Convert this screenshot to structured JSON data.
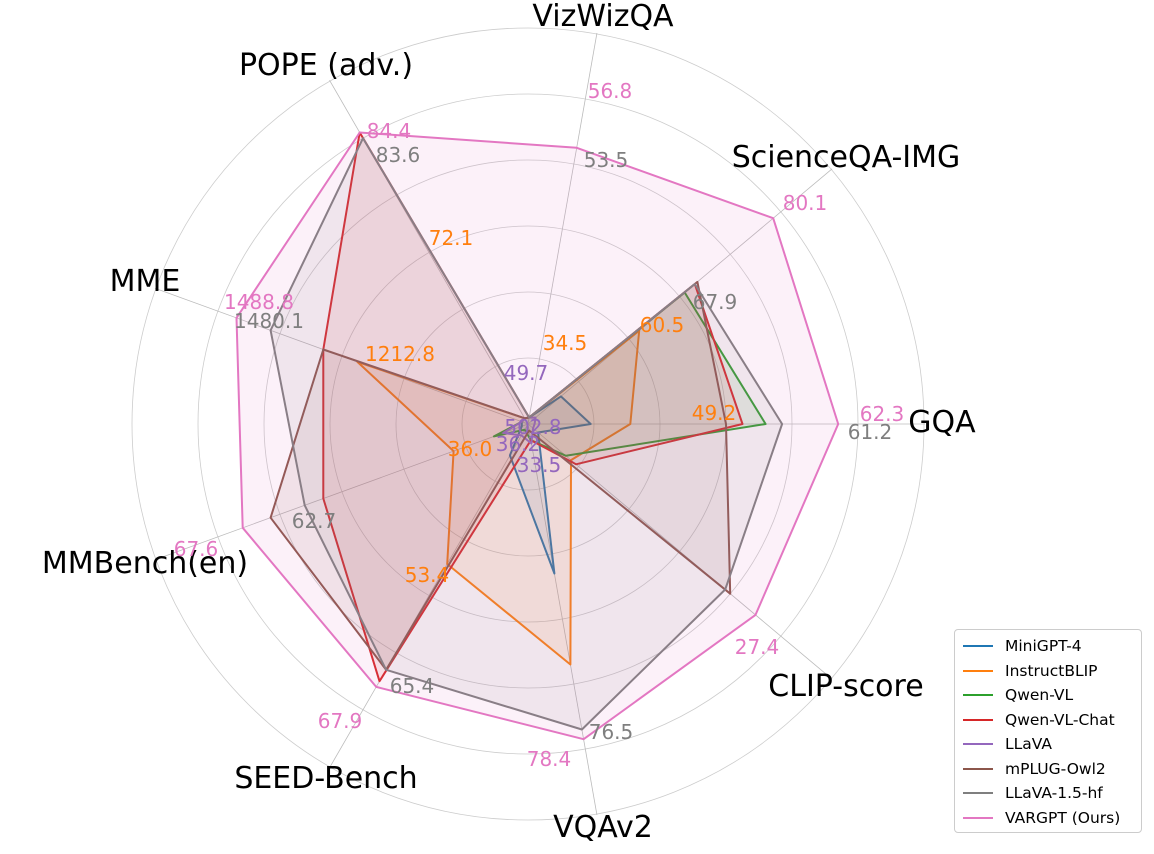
{
  "chart_data": {
    "type": "radar",
    "axes": [
      "GQA",
      "VizWizQA",
      "POPE (adv.)",
      "MME",
      "MMBench(en)",
      "SEED-Bench",
      "VQAv2",
      "CLIP-score",
      "ScienceQA-IMG"
    ],
    "axes_clockwise_from_east": [
      "GQA",
      "CLIP-score",
      "VQAv2",
      "SEED-Bench",
      "MMBench(en)",
      "MME",
      "POPE (adv.)",
      "VizWizQA",
      "ScienceQA-IMG"
    ],
    "normalized_note": "values are each model's score normalized per axis (0 = center, 1 = outer ring)",
    "series": [
      {
        "name": "MiniGPT-4",
        "color": "#1f77b4",
        "values": [
          0.19,
          0.04,
          0.46,
          0.11,
          0.02,
          0.02,
          0.02,
          0.02,
          0.13
        ]
      },
      {
        "name": "InstructBLIP",
        "color": "#ff7f0e",
        "values": [
          0.31,
          0.17,
          0.74,
          0.49,
          0.24,
          0.55,
          0.02,
          0.02,
          0.44
        ]
      },
      {
        "name": "Qwen-VL",
        "color": "#2ca02c",
        "values": [
          0.72,
          0.15,
          0.05,
          0.02,
          0.11,
          0.02,
          0.02,
          0.02,
          0.62
        ]
      },
      {
        "name": "Qwen-VL-Chat",
        "color": "#d62728",
        "values": [
          0.65,
          0.19,
          0.05,
          0.9,
          0.66,
          0.66,
          1.02,
          0.02,
          0.66
        ]
      },
      {
        "name": "LLaVA",
        "color": "#9467bd",
        "values": [
          0.02,
          0.02,
          0.06,
          0.04,
          0.08,
          0.02,
          0.02,
          0.02,
          0.03
        ]
      },
      {
        "name": "mPLUG-Owl2",
        "color": "#8c564b",
        "values": [
          0.6,
          0.8,
          0.02,
          0.86,
          0.83,
          0.66,
          0.02,
          0.02,
          0.67
        ]
      },
      {
        "name": "LLaVA-1.5-hf",
        "color": "#7f7f7f",
        "values": [
          0.77,
          0.78,
          0.94,
          0.86,
          0.72,
          0.83,
          1.0,
          0.02,
          0.66
        ]
      },
      {
        "name": "VARGPT (Ours)",
        "color": "#e377c2",
        "values": [
          0.94,
          0.9,
          0.97,
          0.92,
          0.92,
          0.94,
          1.02,
          0.85,
          0.97
        ]
      }
    ],
    "grid": true,
    "legend_position": "bottom-right"
  },
  "value_labels": [
    {
      "text": "62.3",
      "series": "VARGPT (Ours)",
      "color": "#e377c2"
    },
    {
      "text": "61.2",
      "series": "LLaVA-1.5-hf",
      "color": "#7f7f7f"
    },
    {
      "text": "49.2",
      "series": "InstructBLIP",
      "color": "#ff7f0e"
    },
    {
      "text": "27.4",
      "series": "VARGPT (Ours)",
      "color": "#e377c2"
    },
    {
      "text": "78.4",
      "series": "VARGPT (Ours)",
      "color": "#e377c2"
    },
    {
      "text": "76.5",
      "series": "LLaVA-1.5-hf",
      "color": "#7f7f7f"
    },
    {
      "text": "33.5",
      "series": "LLaVA",
      "color": "#9467bd"
    },
    {
      "text": "67.9",
      "series": "VARGPT (Ours)",
      "color": "#e377c2"
    },
    {
      "text": "65.4",
      "series": "LLaVA-1.5-hf",
      "color": "#7f7f7f"
    },
    {
      "text": "53.4",
      "series": "InstructBLIP",
      "color": "#ff7f0e"
    },
    {
      "text": "36.2",
      "series": "LLaVA",
      "color": "#9467bd"
    },
    {
      "text": "67.6",
      "series": "VARGPT (Ours)",
      "color": "#e377c2"
    },
    {
      "text": "62.7",
      "series": "LLaVA-1.5-hf",
      "color": "#7f7f7f"
    },
    {
      "text": "36.0",
      "series": "InstructBLIP",
      "color": "#ff7f0e"
    },
    {
      "text": "1488.8",
      "series": "VARGPT (Ours)",
      "color": "#e377c2"
    },
    {
      "text": "1480.1",
      "series": "LLaVA-1.5-hf",
      "color": "#7f7f7f"
    },
    {
      "text": "1212.8",
      "series": "InstructBLIP",
      "color": "#ff7f0e"
    },
    {
      "text": "502.8",
      "series": "LLaVA",
      "color": "#9467bd"
    },
    {
      "text": "84.4",
      "series": "VARGPT (Ours)",
      "color": "#e377c2"
    },
    {
      "text": "83.6",
      "series": "LLaVA-1.5-hf",
      "color": "#7f7f7f"
    },
    {
      "text": "72.1",
      "series": "InstructBLIP",
      "color": "#ff7f0e"
    },
    {
      "text": "49.7",
      "series": "LLaVA",
      "color": "#9467bd"
    },
    {
      "text": "56.8",
      "series": "VARGPT (Ours)",
      "color": "#e377c2"
    },
    {
      "text": "53.5",
      "series": "LLaVA-1.5-hf",
      "color": "#7f7f7f"
    },
    {
      "text": "34.5",
      "series": "InstructBLIP",
      "color": "#ff7f0e"
    },
    {
      "text": "80.1",
      "series": "VARGPT (Ours)",
      "color": "#e377c2"
    },
    {
      "text": "67.9",
      "series": "LLaVA-1.5-hf",
      "color": "#7f7f7f"
    },
    {
      "text": "60.5",
      "series": "InstructBLIP",
      "color": "#ff7f0e"
    }
  ]
}
